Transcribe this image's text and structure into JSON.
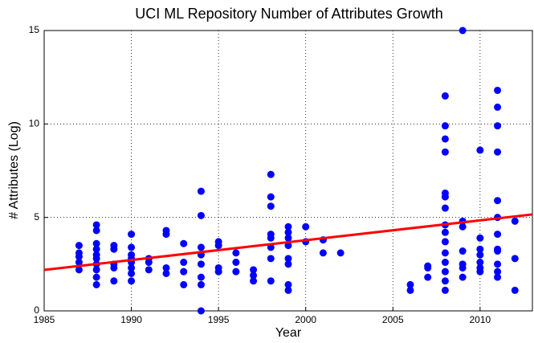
{
  "chart_data": {
    "type": "scatter",
    "title": "UCI ML Repository Number of Attributes Growth",
    "x_label": "Year",
    "y_label": "# Attributes (Log)",
    "xlim": [
      1985,
      2013
    ],
    "ylim": [
      0,
      15
    ],
    "xticks": [
      1985,
      1990,
      1995,
      2000,
      2005,
      2010
    ],
    "yticks": [
      0,
      5,
      10,
      15
    ],
    "grid": true,
    "color": "#0000ff",
    "x": [
      1987,
      1987,
      1987,
      1987,
      1987,
      1988,
      1988,
      1988,
      1988,
      1988,
      1988,
      1988,
      1988,
      1988,
      1988,
      1989,
      1989,
      1989,
      1989,
      1989,
      1990,
      1990,
      1990,
      1990,
      1990,
      1990,
      1990,
      1990,
      1991,
      1991,
      1991,
      1992,
      1992,
      1992,
      1992,
      1993,
      1993,
      1993,
      1993,
      1994,
      1994,
      1994,
      1994,
      1994,
      1994,
      1994,
      1994,
      1995,
      1995,
      1995,
      1995,
      1996,
      1996,
      1996,
      1997,
      1997,
      1997,
      1998,
      1998,
      1998,
      1998,
      1998,
      1998,
      1998,
      1998,
      1999,
      1999,
      1999,
      1999,
      1999,
      1999,
      1999,
      1999,
      2000,
      2000,
      2001,
      2001,
      2002,
      2006,
      2006,
      2007,
      2007,
      2007,
      2008,
      2008,
      2008,
      2008,
      2008,
      2008,
      2008,
      2008,
      2008,
      2008,
      2008,
      2008,
      2008,
      2008,
      2008,
      2009,
      2009,
      2009,
      2009,
      2009,
      2009,
      2009,
      2010,
      2010,
      2010,
      2010,
      2010,
      2010,
      2010,
      2011,
      2011,
      2011,
      2011,
      2011,
      2011,
      2011,
      2011,
      2011,
      2011,
      2011,
      2011,
      2012,
      2012,
      2012
    ],
    "y": [
      2.2,
      2.6,
      2.9,
      3.1,
      3.5,
      1.4,
      1.8,
      2.2,
      2.5,
      2.8,
      3.0,
      3.3,
      3.6,
      4.3,
      4.6,
      1.6,
      2.3,
      2.5,
      3.3,
      3.5,
      1.6,
      2.0,
      2.3,
      2.6,
      2.8,
      3.0,
      3.4,
      4.1,
      2.2,
      2.6,
      2.8,
      2.0,
      2.3,
      4.1,
      4.3,
      1.4,
      2.1,
      2.6,
      3.6,
      0,
      1.4,
      1.8,
      2.5,
      3.0,
      3.4,
      5.1,
      6.4,
      2.1,
      2.3,
      3.5,
      3.7,
      2.1,
      2.6,
      3.1,
      1.6,
      1.9,
      2.2,
      1.6,
      2.8,
      3.4,
      3.9,
      4.1,
      5.6,
      6.1,
      7.3,
      1.1,
      1.4,
      2.5,
      2.8,
      3.5,
      3.9,
      4.2,
      4.5,
      3.7,
      4.5,
      3.1,
      3.8,
      3.1,
      1.1,
      1.4,
      1.8,
      2.3,
      2.4,
      1.1,
      1.6,
      2.1,
      2.6,
      3.1,
      3.7,
      4.2,
      4.6,
      5.5,
      6.1,
      6.3,
      8.5,
      9.2,
      9.9,
      11.5,
      1.8,
      2.3,
      2.5,
      3.2,
      4.5,
      4.8,
      15,
      2.1,
      2.3,
      2.6,
      3.0,
      3.3,
      3.9,
      8.6,
      1.8,
      2.1,
      2.5,
      3.2,
      3.3,
      4.1,
      5.0,
      5.9,
      8.5,
      9.9,
      10.9,
      11.8,
      1.1,
      2.8,
      4.8
    ],
    "trend_line": {
      "x": [
        1985,
        2013
      ],
      "y": [
        2.19,
        5.16
      ],
      "color": "#ff0000"
    }
  }
}
